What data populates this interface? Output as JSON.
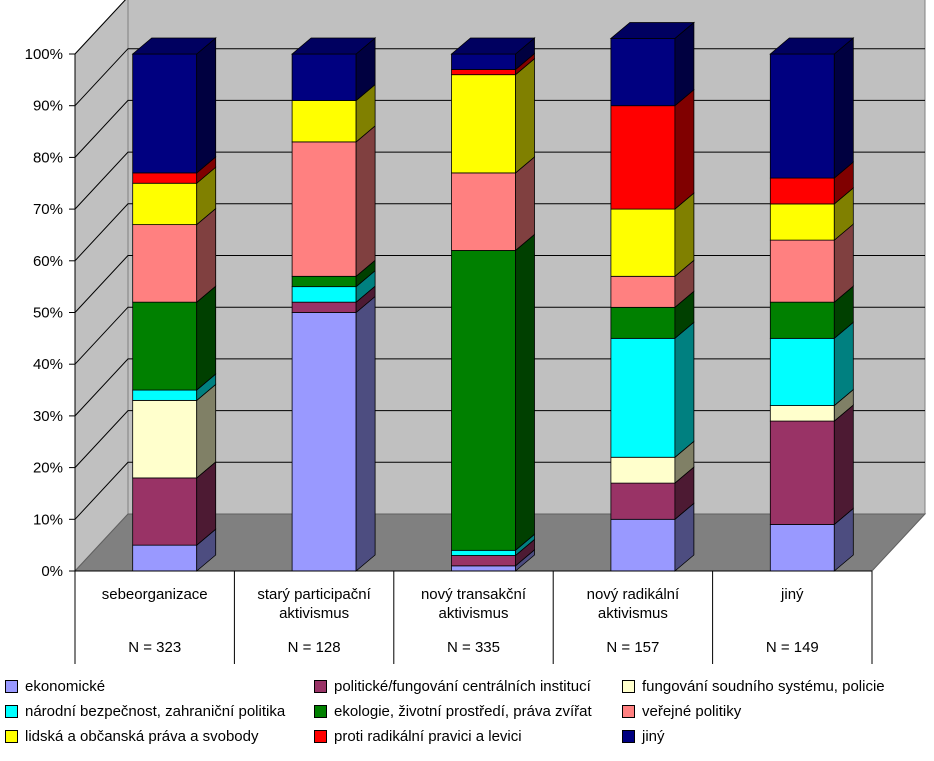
{
  "chart_data": {
    "type": "bar",
    "stacked": true,
    "percent": true,
    "style": "3d",
    "categories": [
      {
        "label": [
          "sebeorganizace"
        ],
        "n": "N = 323"
      },
      {
        "label": [
          "starý participační",
          "aktivismus"
        ],
        "n": "N = 128"
      },
      {
        "label": [
          "nový transakční",
          "aktivismus"
        ],
        "n": "N = 335"
      },
      {
        "label": [
          "nový radikální",
          "aktivismus"
        ],
        "n": "N = 157"
      },
      {
        "label": [
          "jiný"
        ],
        "n": "N = 149"
      }
    ],
    "ylim": [
      0,
      100
    ],
    "yticks": [
      "0%",
      "10%",
      "20%",
      "30%",
      "40%",
      "50%",
      "60%",
      "70%",
      "80%",
      "90%",
      "100%"
    ],
    "grid": true,
    "legend_position": "bottom",
    "series": [
      {
        "name": "ekonomické",
        "color": "#9999ff",
        "values": [
          5,
          50,
          1,
          10,
          9
        ]
      },
      {
        "name": "politické/fungování centrálních institucí",
        "color": "#993366",
        "values": [
          13,
          2,
          2,
          7,
          20
        ]
      },
      {
        "name": "fungování soudního systému, policie",
        "color": "#ffffcc",
        "values": [
          15,
          0,
          0,
          5,
          3
        ]
      },
      {
        "name": "národní bezpečnost, zahraniční politika",
        "color": "#00ffff",
        "values": [
          2,
          3,
          1,
          23,
          13
        ]
      },
      {
        "name": "ekologie, životní prostředí, práva zvířat",
        "color": "#008000",
        "values": [
          17,
          2,
          58,
          6,
          7
        ]
      },
      {
        "name": "veřejné politiky",
        "color": "#ff8080",
        "values": [
          15,
          26,
          15,
          6,
          12
        ]
      },
      {
        "name": "lidská a občanská práva a svobody",
        "color": "#ffff00",
        "values": [
          8,
          8,
          19,
          13,
          7
        ]
      },
      {
        "name": "proti radikální pravici a levici",
        "color": "#ff0000",
        "values": [
          2,
          0,
          1,
          20,
          5
        ]
      },
      {
        "name": "jiný",
        "color": "#000080",
        "values": [
          23,
          9,
          3,
          13,
          24
        ]
      }
    ]
  }
}
